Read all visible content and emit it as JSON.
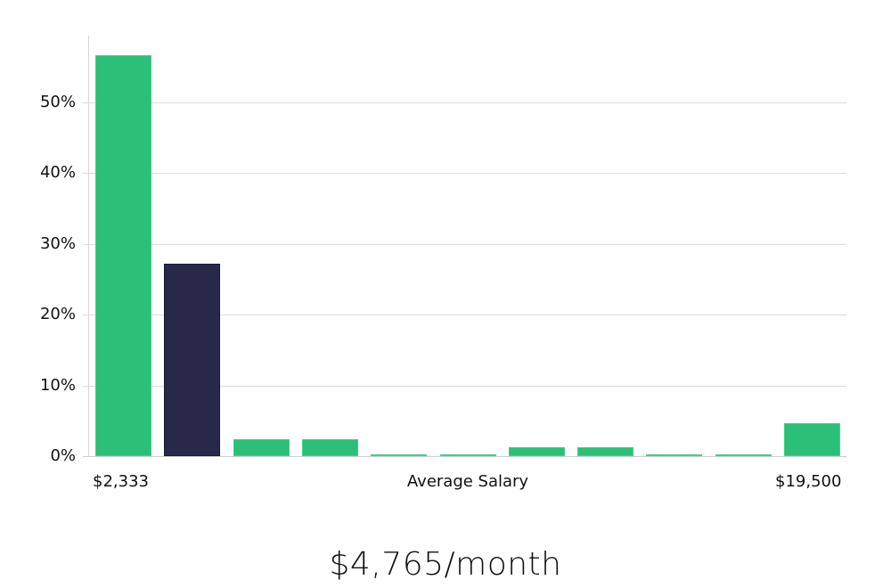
{
  "chart_data": {
    "type": "bar",
    "title": "",
    "xlabel": "Average Salary",
    "ylabel": "",
    "ylim": [
      0,
      60
    ],
    "grid": true,
    "y_ticks": [
      "0%",
      "10%",
      "20%",
      "30%",
      "40%",
      "50%"
    ],
    "x_tick_labels": {
      "min": "$2,333",
      "max": "$19,500"
    },
    "categories": [
      "bin1",
      "bin2",
      "bin3",
      "bin4",
      "bin5",
      "bin6",
      "bin7",
      "bin8",
      "bin9",
      "bin10",
      "bin11"
    ],
    "values": [
      56.7,
      27.2,
      2.4,
      2.4,
      0,
      0,
      1.2,
      1.2,
      0,
      0,
      4.7
    ],
    "highlight_index": 1,
    "colors": {
      "bar": "#2bbf77",
      "highlight": "#29274a",
      "grid": "#dcdcdc"
    },
    "summary_value": "$4,765/month"
  }
}
